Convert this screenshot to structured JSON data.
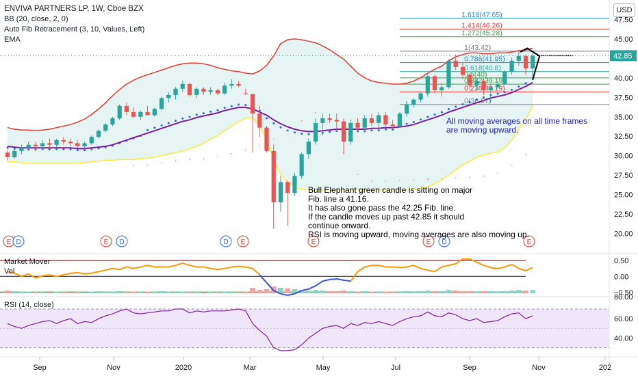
{
  "header": {
    "title": "ENVIVA PARTNERS LP, 1W, Cboe BZX",
    "indicators": [
      "BB (20, close, 2, 0)",
      "Auto Fib Retracement (3, 10, Values, Left)",
      "EMA"
    ],
    "currency_button": "USD"
  },
  "colors": {
    "up": "#26a69a",
    "down": "#ef5350",
    "bb_upper": "#e53935",
    "bb_lower": "#ffeb3b",
    "bb_fill": "#e6f4f4",
    "ema": "#7b1fa2",
    "dots_blue": "#2962ff",
    "dots_red": "#ef5350",
    "market_mover": "#ff9800",
    "rsi_line": "#7b1fa2",
    "rsi_fill": "#f0e6fa"
  },
  "chart_data": {
    "type": "candlestick",
    "price_axis": {
      "min": 17.5,
      "max": 50,
      "ticks": [
        "47.50",
        "45.00",
        "42.50",
        "40.00",
        "37.50",
        "35.00",
        "32.50",
        "30.00",
        "27.50",
        "25.00",
        "22.50",
        "20.00"
      ],
      "last_price": "42.85"
    },
    "time_axis": {
      "labels": [
        "Sep",
        "Nov",
        "2020",
        "Mar",
        "May",
        "Jul",
        "Sep",
        "Nov",
        "202"
      ]
    },
    "candles": [
      [
        30.4,
        30.8,
        29.4,
        29.8
      ],
      [
        29.8,
        30.8,
        29.6,
        30.6
      ],
      [
        30.6,
        31.4,
        30.2,
        31.0
      ],
      [
        31.0,
        31.8,
        30.6,
        31.4
      ],
      [
        31.4,
        31.8,
        30.6,
        31.2
      ],
      [
        31.2,
        32.0,
        30.8,
        31.6
      ],
      [
        31.6,
        32.2,
        31.0,
        31.4
      ],
      [
        31.4,
        32.2,
        31.0,
        32.0
      ],
      [
        32.0,
        32.4,
        31.4,
        31.8
      ],
      [
        31.8,
        32.2,
        31.2,
        31.6
      ],
      [
        31.6,
        32.0,
        31.0,
        31.2
      ],
      [
        31.2,
        31.8,
        30.8,
        31.6
      ],
      [
        31.6,
        32.6,
        31.4,
        32.4
      ],
      [
        32.4,
        33.4,
        32.2,
        33.2
      ],
      [
        33.2,
        34.2,
        33.0,
        34.0
      ],
      [
        34.0,
        35.0,
        33.8,
        34.8
      ],
      [
        34.8,
        36.6,
        34.6,
        36.4
      ],
      [
        36.4,
        36.8,
        35.2,
        35.6
      ],
      [
        35.6,
        36.2,
        34.8,
        35.0
      ],
      [
        35.0,
        35.8,
        34.6,
        35.6
      ],
      [
        35.6,
        36.4,
        35.2,
        35.2
      ],
      [
        35.2,
        36.2,
        35.0,
        36.0
      ],
      [
        36.0,
        37.6,
        35.8,
        37.4
      ],
      [
        37.4,
        38.2,
        36.8,
        37.8
      ],
      [
        37.8,
        38.8,
        37.2,
        38.6
      ],
      [
        38.6,
        39.6,
        38.2,
        39.2
      ],
      [
        39.2,
        39.4,
        37.6,
        37.8
      ],
      [
        37.8,
        38.8,
        37.4,
        38.6
      ],
      [
        38.6,
        38.8,
        37.8,
        38.2
      ],
      [
        38.2,
        38.8,
        37.8,
        38.4
      ],
      [
        38.4,
        38.6,
        37.8,
        38.0
      ],
      [
        38.0,
        39.4,
        37.8,
        39.0
      ],
      [
        39.0,
        39.8,
        38.6,
        39.2
      ],
      [
        39.2,
        39.6,
        38.8,
        39.0
      ],
      [
        38.0,
        38.6,
        37.8,
        37.9
      ],
      [
        37.9,
        38.0,
        30.4,
        35.4
      ],
      [
        35.4,
        36.4,
        32.4,
        33.6
      ],
      [
        33.6,
        33.8,
        30.4,
        30.6
      ],
      [
        30.6,
        31.4,
        20.6,
        24.0
      ],
      [
        24.0,
        27.4,
        22.8,
        26.6
      ],
      [
        26.6,
        26.8,
        21.0,
        25.2
      ],
      [
        25.2,
        27.8,
        24.8,
        27.4
      ],
      [
        27.4,
        30.4,
        27.0,
        30.2
      ],
      [
        30.2,
        32.2,
        29.6,
        31.8
      ],
      [
        31.8,
        34.8,
        31.4,
        34.2
      ],
      [
        34.2,
        35.4,
        32.6,
        34.8
      ],
      [
        34.8,
        35.4,
        34.2,
        34.6
      ],
      [
        34.6,
        35.4,
        33.2,
        34.4
      ],
      [
        34.4,
        34.8,
        30.2,
        31.8
      ],
      [
        31.8,
        34.6,
        31.4,
        34.2
      ],
      [
        34.2,
        34.8,
        33.2,
        33.6
      ],
      [
        33.6,
        35.2,
        33.2,
        34.8
      ],
      [
        34.8,
        35.4,
        33.8,
        34.2
      ],
      [
        34.2,
        35.6,
        33.4,
        35.2
      ],
      [
        35.2,
        35.6,
        33.6,
        34.0
      ],
      [
        34.0,
        34.6,
        33.4,
        33.8
      ],
      [
        33.8,
        35.6,
        33.6,
        35.4
      ],
      [
        35.4,
        37.0,
        35.0,
        36.6
      ],
      [
        36.6,
        37.4,
        36.2,
        37.2
      ],
      [
        37.2,
        38.2,
        36.8,
        38.0
      ],
      [
        38.0,
        40.6,
        37.6,
        40.2
      ],
      [
        40.2,
        40.4,
        38.0,
        38.4
      ],
      [
        38.4,
        39.4,
        37.6,
        38.8
      ],
      [
        38.8,
        42.4,
        38.6,
        42.2
      ],
      [
        42.2,
        43.0,
        41.0,
        41.4
      ],
      [
        41.4,
        42.0,
        39.8,
        40.4
      ],
      [
        40.4,
        40.6,
        38.6,
        39.0
      ],
      [
        39.0,
        40.0,
        38.4,
        39.6
      ],
      [
        39.6,
        39.8,
        37.8,
        38.4
      ],
      [
        38.4,
        39.2,
        36.8,
        38.8
      ],
      [
        38.8,
        39.6,
        38.6,
        39.2
      ],
      [
        39.2,
        41.0,
        39.0,
        40.8
      ],
      [
        40.8,
        42.6,
        40.4,
        42.2
      ],
      [
        42.2,
        43.6,
        41.6,
        42.8
      ],
      [
        42.8,
        43.0,
        40.4,
        41.2
      ],
      [
        41.2,
        43.4,
        40.2,
        42.85
      ]
    ],
    "bb_upper": [
      33.6,
      33.4,
      33.3,
      33.3,
      33.2,
      33.3,
      33.4,
      33.6,
      33.8,
      34.0,
      34.3,
      34.7,
      35.3,
      36.0,
      36.8,
      37.7,
      38.5,
      39.2,
      39.7,
      40.1,
      40.4,
      40.7,
      41.0,
      41.3,
      41.6,
      41.8,
      41.9,
      41.9,
      41.8,
      41.6,
      41.3,
      41.1,
      40.9,
      40.8,
      40.6,
      40.5,
      40.9,
      41.6,
      42.8,
      44.4,
      44.9,
      45.0,
      44.9,
      44.7,
      44.5,
      44.1,
      43.6,
      43.0,
      42.4,
      41.5,
      40.6,
      40.0,
      39.6,
      39.4,
      39.3,
      39.2,
      39.2,
      39.3,
      39.6,
      40.0,
      40.6,
      41.1,
      41.5,
      42.2,
      42.7,
      43.0,
      43.2,
      43.2,
      43.1,
      43.1,
      43.2,
      43.2,
      43.3,
      43.5,
      43.6,
      43.8
    ],
    "bb_lower": [
      29.2,
      29.2,
      29.1,
      29.0,
      29.0,
      29.0,
      29.0,
      29.0,
      29.0,
      29.0,
      29.0,
      29.1,
      29.2,
      29.3,
      29.4,
      29.4,
      29.5,
      29.5,
      29.5,
      29.6,
      29.7,
      29.8,
      30.0,
      30.2,
      30.4,
      30.6,
      30.9,
      31.2,
      31.6,
      32.1,
      32.6,
      33.2,
      33.8,
      34.4,
      34.8,
      34.9,
      33.8,
      32.0,
      29.5,
      27.6,
      26.6,
      26.0,
      25.7,
      25.6,
      25.6,
      25.6,
      25.6,
      25.6,
      25.6,
      25.6,
      25.6,
      25.6,
      25.6,
      25.6,
      25.6,
      25.6,
      25.6,
      25.6,
      25.7,
      25.8,
      26.0,
      26.4,
      26.9,
      27.5,
      28.2,
      28.8,
      29.3,
      29.8,
      30.1,
      30.3,
      30.5,
      31.0,
      32.0,
      33.4,
      34.6,
      36.4
    ],
    "ema": [
      31.2,
      31.1,
      31.0,
      31.0,
      31.0,
      31.0,
      31.0,
      31.0,
      31.0,
      31.0,
      30.9,
      30.9,
      31.0,
      31.1,
      31.2,
      31.4,
      31.7,
      32.0,
      32.3,
      32.6,
      32.9,
      33.2,
      33.5,
      33.8,
      34.1,
      34.4,
      34.6,
      34.9,
      35.1,
      35.3,
      35.5,
      35.8,
      36.0,
      36.2,
      36.2,
      36.0,
      35.6,
      35.2,
      34.6,
      34.1,
      33.7,
      33.4,
      33.2,
      33.1,
      33.1,
      33.2,
      33.3,
      33.4,
      33.4,
      33.4,
      33.4,
      33.4,
      33.5,
      33.5,
      33.6,
      33.6,
      33.7,
      33.8,
      34.0,
      34.3,
      34.6,
      34.9,
      35.2,
      35.6,
      35.9,
      36.2,
      36.5,
      36.8,
      37.1,
      37.4,
      37.6,
      37.8,
      38.1,
      38.5,
      38.9,
      39.4
    ],
    "fib_levels": [
      {
        "label": "1.618(47.65)",
        "value": 47.65,
        "color": "#1e88e5"
      },
      {
        "label": "1.414(46.26)",
        "value": 46.26,
        "color": "#e53935"
      },
      {
        "label": "1.272(45.28)",
        "value": 45.28,
        "color": "#43a047"
      },
      {
        "label": "1(43.42)",
        "value": 43.42,
        "color": "#787b86"
      },
      {
        "label": "0.786(41.95)",
        "value": 41.95,
        "color": "#1e88e5"
      },
      {
        "label": "0.618(40.8)",
        "value": 40.8,
        "color": "#26a69a"
      },
      {
        "label": "0.5(40)",
        "value": 40.0,
        "color": "#43a047"
      },
      {
        "label": "0.382(39.19)",
        "value": 39.19,
        "color": "#43a047"
      },
      {
        "label": "0.236(38.19)",
        "value": 38.19,
        "color": "#e53935"
      },
      {
        "label": "0(36.57)",
        "value": 36.57,
        "color": "#787b86"
      }
    ],
    "market_mover": {
      "label": "Market Mover",
      "vol_label": "Vol",
      "ticks": [
        "0.50",
        "0.00",
        "−0.50"
      ],
      "min": -0.6,
      "max": 0.7,
      "values": [
        0.15,
        0.1,
        0.0,
        0.08,
        -0.05,
        0.02,
        0.05,
        0.0,
        0.05,
        0.1,
        0.12,
        0.08,
        0.1,
        0.15,
        0.2,
        0.25,
        0.22,
        0.3,
        0.25,
        0.3,
        0.35,
        0.3,
        0.3,
        0.3,
        0.35,
        0.42,
        0.35,
        0.3,
        0.3,
        0.25,
        0.22,
        0.25,
        0.3,
        0.32,
        0.3,
        0.25,
        0.05,
        -0.2,
        -0.45,
        -0.55,
        -0.6,
        -0.55,
        -0.45,
        -0.4,
        -0.3,
        -0.15,
        -0.1,
        -0.08,
        -0.12,
        -0.15,
        0.15,
        0.3,
        0.35,
        0.35,
        0.3,
        0.3,
        0.28,
        0.3,
        0.35,
        0.25,
        0.2,
        0.15,
        0.3,
        0.35,
        0.4,
        0.55,
        0.55,
        0.45,
        0.35,
        0.28,
        0.25,
        0.3,
        0.38,
        0.25,
        0.18,
        0.28
      ],
      "volume": [
        0.1,
        0.08,
        0.05,
        0.06,
        0.05,
        0.05,
        0.04,
        0.06,
        0.05,
        0.04,
        0.05,
        0.04,
        0.06,
        0.08,
        0.05,
        0.06,
        0.08,
        0.05,
        0.06,
        0.05,
        0.06,
        0.05,
        0.08,
        0.06,
        0.05,
        0.06,
        0.05,
        0.05,
        0.04,
        0.05,
        0.05,
        0.06,
        0.05,
        0.05,
        0.06,
        0.2,
        0.12,
        0.15,
        0.25,
        0.2,
        0.18,
        0.15,
        0.12,
        0.1,
        0.12,
        0.1,
        0.08,
        0.08,
        0.1,
        0.08,
        0.06,
        0.08,
        0.06,
        0.07,
        0.06,
        0.06,
        0.07,
        0.08,
        0.07,
        0.08,
        0.1,
        0.08,
        0.08,
        0.12,
        0.1,
        0.08,
        0.08,
        0.07,
        0.08,
        0.08,
        0.07,
        0.08,
        0.1,
        0.12,
        0.1,
        0.12
      ]
    },
    "rsi": {
      "label": "RSI (14, close)",
      "ticks": [
        "60.00",
        "40.00"
      ],
      "min": 22,
      "max": 82,
      "upper": 70,
      "lower": 30,
      "values": [
        55,
        52,
        50,
        53,
        55,
        57,
        58,
        55,
        58,
        60,
        55,
        57,
        56,
        60,
        63,
        65,
        68,
        70,
        66,
        65,
        66,
        67,
        68,
        68,
        70,
        70,
        66,
        68,
        67,
        68,
        68,
        68,
        69,
        70,
        68,
        55,
        48,
        42,
        30,
        27,
        27,
        28,
        33,
        40,
        45,
        50,
        52,
        53,
        50,
        55,
        53,
        56,
        55,
        57,
        55,
        53,
        57,
        60,
        62,
        63,
        67,
        63,
        62,
        66,
        64,
        60,
        58,
        60,
        56,
        57,
        58,
        62,
        65,
        66,
        60,
        63
      ]
    }
  },
  "annotations": {
    "blue_note": [
      "All moving averages on all time frames",
      "are moving upward."
    ],
    "black_note": [
      "Bull Elephant green candle is sitting on major",
      "Fib. line a 41.16.",
      "It has also gone pass the 42.25 Fib. line.",
      "If the candle moves up past 42.85 it should",
      "continue onward.",
      "RSI is moving upward, moving averages are also moving up."
    ]
  },
  "events": [
    {
      "type": "E",
      "color": "#e53935"
    },
    {
      "type": "D",
      "color": "#2962ff"
    },
    {
      "type": "E",
      "color": "#e53935"
    },
    {
      "type": "D",
      "color": "#2962ff"
    },
    {
      "type": "D",
      "color": "#2962ff"
    },
    {
      "type": "E",
      "color": "#e53935"
    },
    {
      "type": "E",
      "color": "#e53935"
    },
    {
      "type": "E",
      "color": "#e53935"
    },
    {
      "type": "D",
      "color": "#2962ff"
    },
    {
      "type": "E",
      "color": "#e53935"
    }
  ]
}
